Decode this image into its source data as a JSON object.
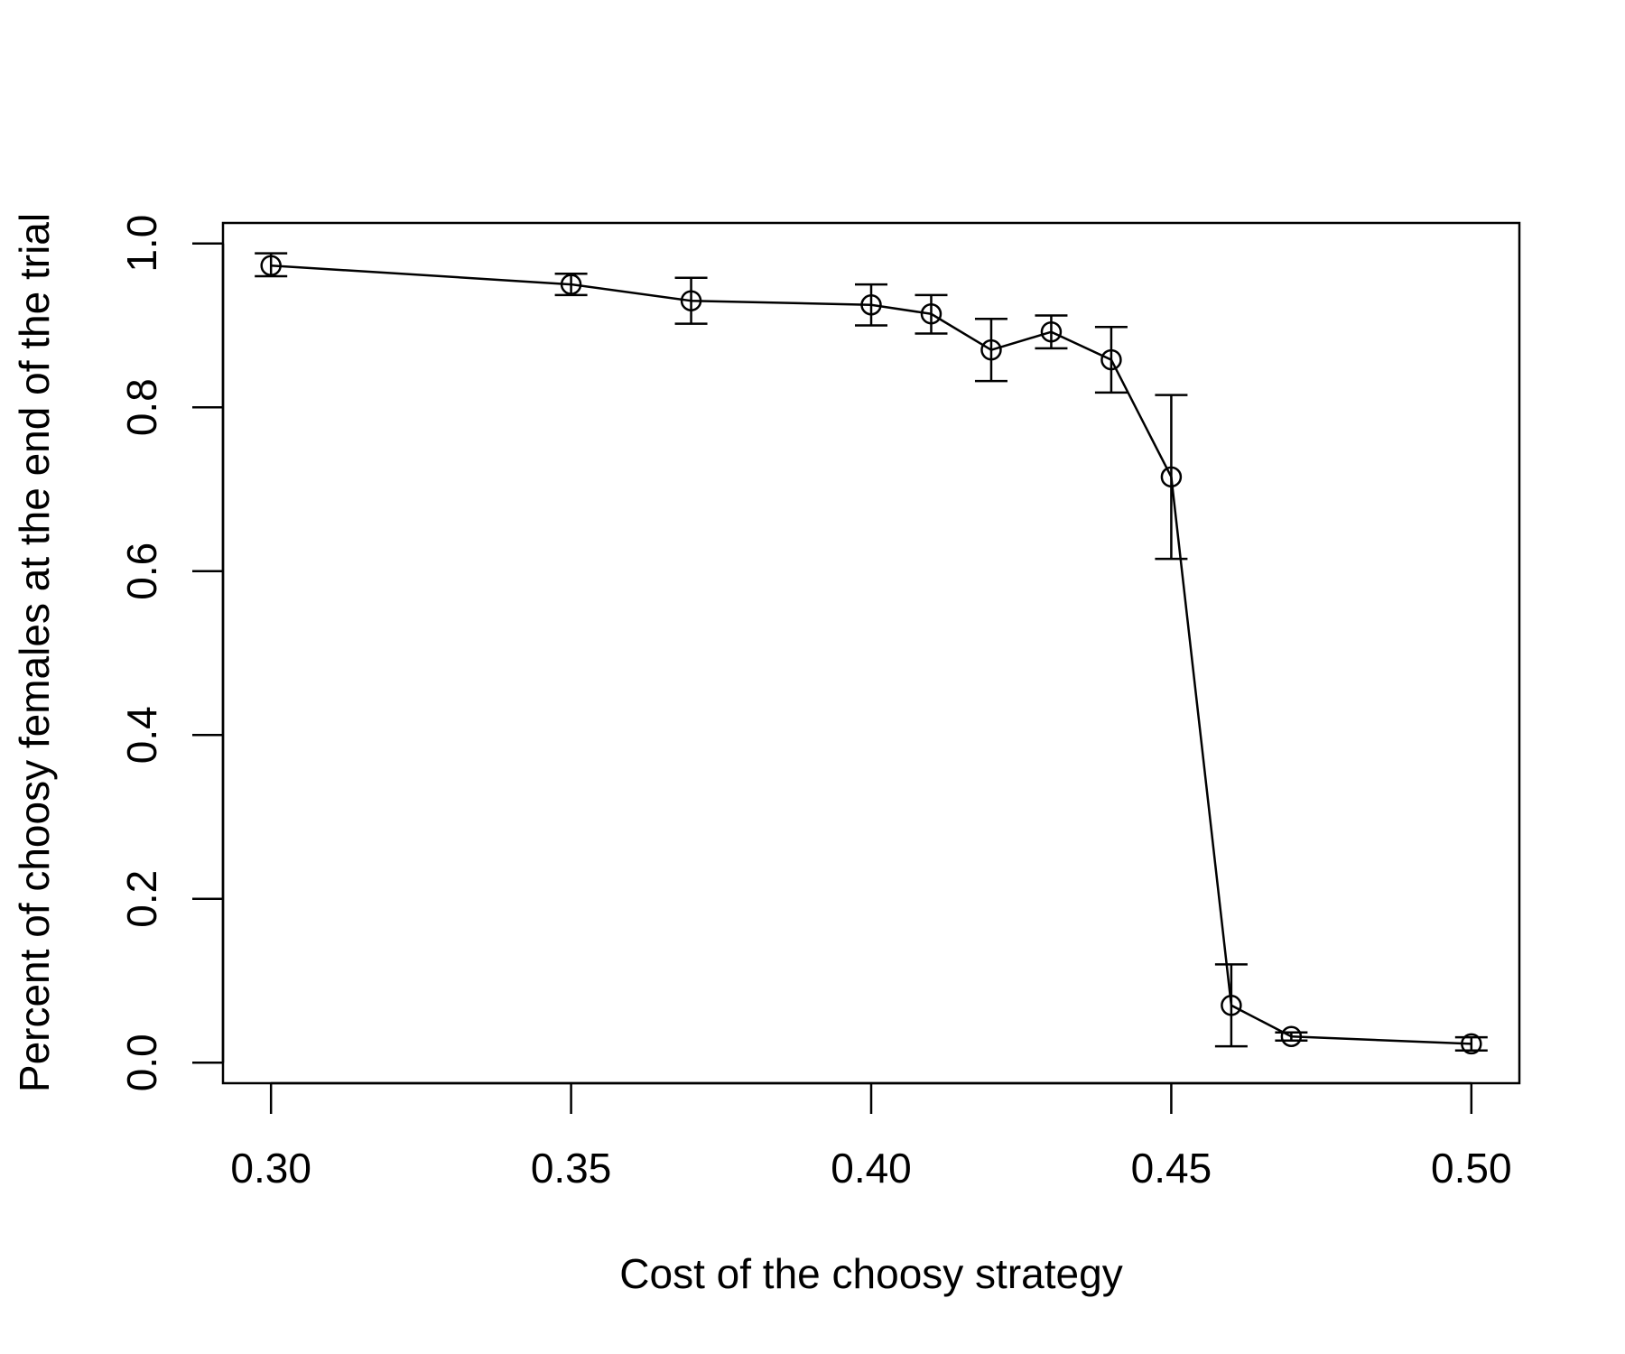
{
  "chart_data": {
    "type": "line",
    "title": "",
    "xlabel": "Cost of the choosy strategy",
    "ylabel": "Percent of choosy females at the end of the trial",
    "xlim": [
      0.292,
      0.508
    ],
    "ylim": [
      -0.025,
      1.025
    ],
    "x_ticks": [
      0.3,
      0.35,
      0.4,
      0.45,
      0.5
    ],
    "x_tick_labels": [
      "0.30",
      "0.35",
      "0.40",
      "0.45",
      "0.50"
    ],
    "y_ticks": [
      0.0,
      0.2,
      0.4,
      0.6,
      0.8,
      1.0
    ],
    "y_tick_labels": [
      "0.0",
      "0.2",
      "0.4",
      "0.6",
      "0.8",
      "1.0"
    ],
    "grid": false,
    "legend": "none",
    "series": [
      {
        "x": [
          0.3,
          0.35,
          0.37,
          0.4,
          0.41,
          0.42,
          0.43,
          0.44,
          0.45,
          0.46,
          0.47,
          0.5
        ],
        "y": [
          0.973,
          0.95,
          0.93,
          0.925,
          0.914,
          0.87,
          0.892,
          0.858,
          0.715,
          0.07,
          0.032,
          0.023
        ],
        "y_err_low": [
          0.96,
          0.937,
          0.902,
          0.9,
          0.89,
          0.832,
          0.872,
          0.818,
          0.615,
          0.02,
          0.027,
          0.015
        ],
        "y_err_high": [
          0.988,
          0.963,
          0.958,
          0.95,
          0.937,
          0.908,
          0.912,
          0.898,
          0.815,
          0.12,
          0.037,
          0.031
        ]
      }
    ]
  }
}
